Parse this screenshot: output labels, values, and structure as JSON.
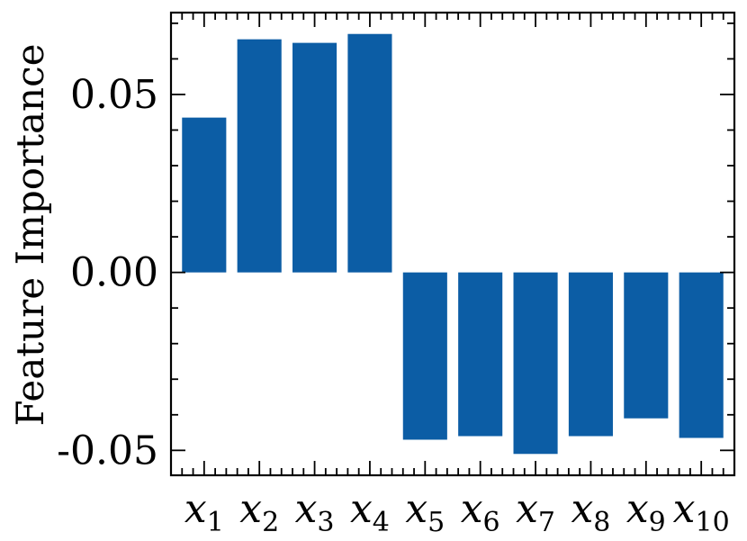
{
  "chart_data": {
    "type": "bar",
    "categories": [
      "x1",
      "x2",
      "x3",
      "x4",
      "x5",
      "x6",
      "x7",
      "x8",
      "x9",
      "x10"
    ],
    "category_display": [
      {
        "base": "x",
        "sub": "1"
      },
      {
        "base": "x",
        "sub": "2"
      },
      {
        "base": "x",
        "sub": "3"
      },
      {
        "base": "x",
        "sub": "4"
      },
      {
        "base": "x",
        "sub": "5"
      },
      {
        "base": "x",
        "sub": "6"
      },
      {
        "base": "x",
        "sub": "7"
      },
      {
        "base": "x",
        "sub": "8"
      },
      {
        "base": "x",
        "sub": "9"
      },
      {
        "base": "x",
        "sub": "10"
      }
    ],
    "values": [
      0.0435,
      0.0655,
      0.0645,
      0.067,
      -0.047,
      -0.046,
      -0.051,
      -0.046,
      -0.041,
      -0.0465
    ],
    "title": "",
    "xlabel": "",
    "ylabel": "Feature Importance",
    "ylim": [
      -0.057,
      0.073
    ],
    "yticks": [
      -0.05,
      0.0,
      0.05
    ],
    "ytick_labels": [
      "-0.05",
      "0.00",
      "0.05"
    ],
    "grid": false,
    "bar_color": "#0C5DA5"
  }
}
